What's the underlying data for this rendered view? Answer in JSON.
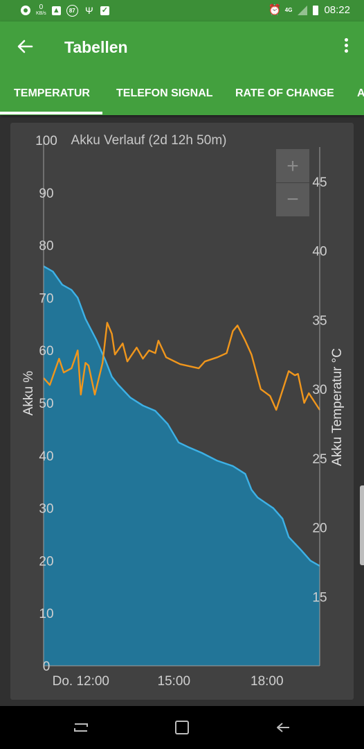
{
  "status_bar": {
    "net_speed": "0",
    "net_unit": "KB/s",
    "badge": "87",
    "network": "4G",
    "time": "08:22"
  },
  "app_bar": {
    "title": "Tabellen",
    "back_icon": "arrow-left-icon",
    "menu_icon": "more-vert-icon"
  },
  "tabs": [
    {
      "label": "TEMPERATUR",
      "selected": true
    },
    {
      "label": "TELEFON SIGNAL",
      "selected": false
    },
    {
      "label": "RATE OF CHANGE",
      "selected": false
    },
    {
      "label": "A",
      "selected": false
    }
  ],
  "zoom": {
    "plus": "+",
    "minus": "−"
  },
  "colors": {
    "status_bar": "#3c8f37",
    "app_bar": "#43a03e",
    "battery_series": "#3db1e6",
    "battery_fill": "#1f7aa0",
    "temperature_series": "#f0961c"
  },
  "chart_data": {
    "type": "line",
    "title": "Akku Verlauf (2d 12h 50m)",
    "xlabel": "",
    "ylabel": "Akku %",
    "y2label": "Akku Temperatur °C",
    "xlim": [
      10.8,
      19.7
    ],
    "x_ticks": [
      12,
      15,
      18
    ],
    "x_tick_labels": [
      "Do. 12:00",
      "15:00",
      "18:00"
    ],
    "ylim": [
      0,
      100
    ],
    "y_ticks": [
      0,
      10,
      20,
      30,
      40,
      50,
      60,
      70,
      80,
      90,
      100
    ],
    "y2lim": [
      10,
      48
    ],
    "y2_ticks": [
      15,
      20,
      25,
      30,
      35,
      40,
      45
    ],
    "series": [
      {
        "name": "Akku %",
        "axis": "left",
        "fill": true,
        "points": [
          [
            10.8,
            76.0
          ],
          [
            11.1,
            75.0
          ],
          [
            11.4,
            72.5
          ],
          [
            11.7,
            71.5
          ],
          [
            11.9,
            70.0
          ],
          [
            12.15,
            66.0
          ],
          [
            12.5,
            62.0
          ],
          [
            12.8,
            58.0
          ],
          [
            13.0,
            55.0
          ],
          [
            13.2,
            53.5
          ],
          [
            13.6,
            51.0
          ],
          [
            14.0,
            49.5
          ],
          [
            14.4,
            48.5
          ],
          [
            14.8,
            46.0
          ],
          [
            15.15,
            42.5
          ],
          [
            15.5,
            41.5
          ],
          [
            15.9,
            40.5
          ],
          [
            16.4,
            39.0
          ],
          [
            16.9,
            38.0
          ],
          [
            17.3,
            36.5
          ],
          [
            17.5,
            33.5
          ],
          [
            17.7,
            32.0
          ],
          [
            18.2,
            30.0
          ],
          [
            18.5,
            28.0
          ],
          [
            18.7,
            24.5
          ],
          [
            19.1,
            22.0
          ],
          [
            19.4,
            20.0
          ],
          [
            19.7,
            19.0
          ]
        ]
      },
      {
        "name": "Akku Temperatur °C",
        "axis": "right",
        "fill": false,
        "points": [
          [
            10.8,
            30.8
          ],
          [
            11.0,
            30.3
          ],
          [
            11.3,
            32.2
          ],
          [
            11.45,
            31.2
          ],
          [
            11.7,
            31.5
          ],
          [
            11.9,
            32.8
          ],
          [
            12.0,
            29.6
          ],
          [
            12.15,
            31.9
          ],
          [
            12.25,
            31.7
          ],
          [
            12.3,
            31.2
          ],
          [
            12.45,
            29.6
          ],
          [
            12.7,
            31.9
          ],
          [
            12.85,
            34.8
          ],
          [
            13.0,
            34.0
          ],
          [
            13.1,
            32.5
          ],
          [
            13.35,
            33.3
          ],
          [
            13.5,
            32.0
          ],
          [
            13.8,
            33.0
          ],
          [
            14.0,
            32.2
          ],
          [
            14.2,
            32.8
          ],
          [
            14.4,
            32.6
          ],
          [
            14.5,
            33.5
          ],
          [
            14.75,
            32.3
          ],
          [
            15.2,
            31.8
          ],
          [
            15.8,
            31.5
          ],
          [
            16.0,
            32.0
          ],
          [
            16.4,
            32.3
          ],
          [
            16.7,
            32.6
          ],
          [
            16.9,
            34.2
          ],
          [
            17.05,
            34.6
          ],
          [
            17.3,
            33.5
          ],
          [
            17.5,
            32.5
          ],
          [
            17.8,
            30.0
          ],
          [
            18.1,
            29.5
          ],
          [
            18.3,
            28.5
          ],
          [
            18.7,
            31.3
          ],
          [
            18.9,
            31.0
          ],
          [
            19.0,
            31.1
          ],
          [
            19.2,
            29.0
          ],
          [
            19.35,
            29.7
          ],
          [
            19.7,
            28.5
          ]
        ]
      }
    ],
    "grid": false,
    "legend": "none"
  }
}
